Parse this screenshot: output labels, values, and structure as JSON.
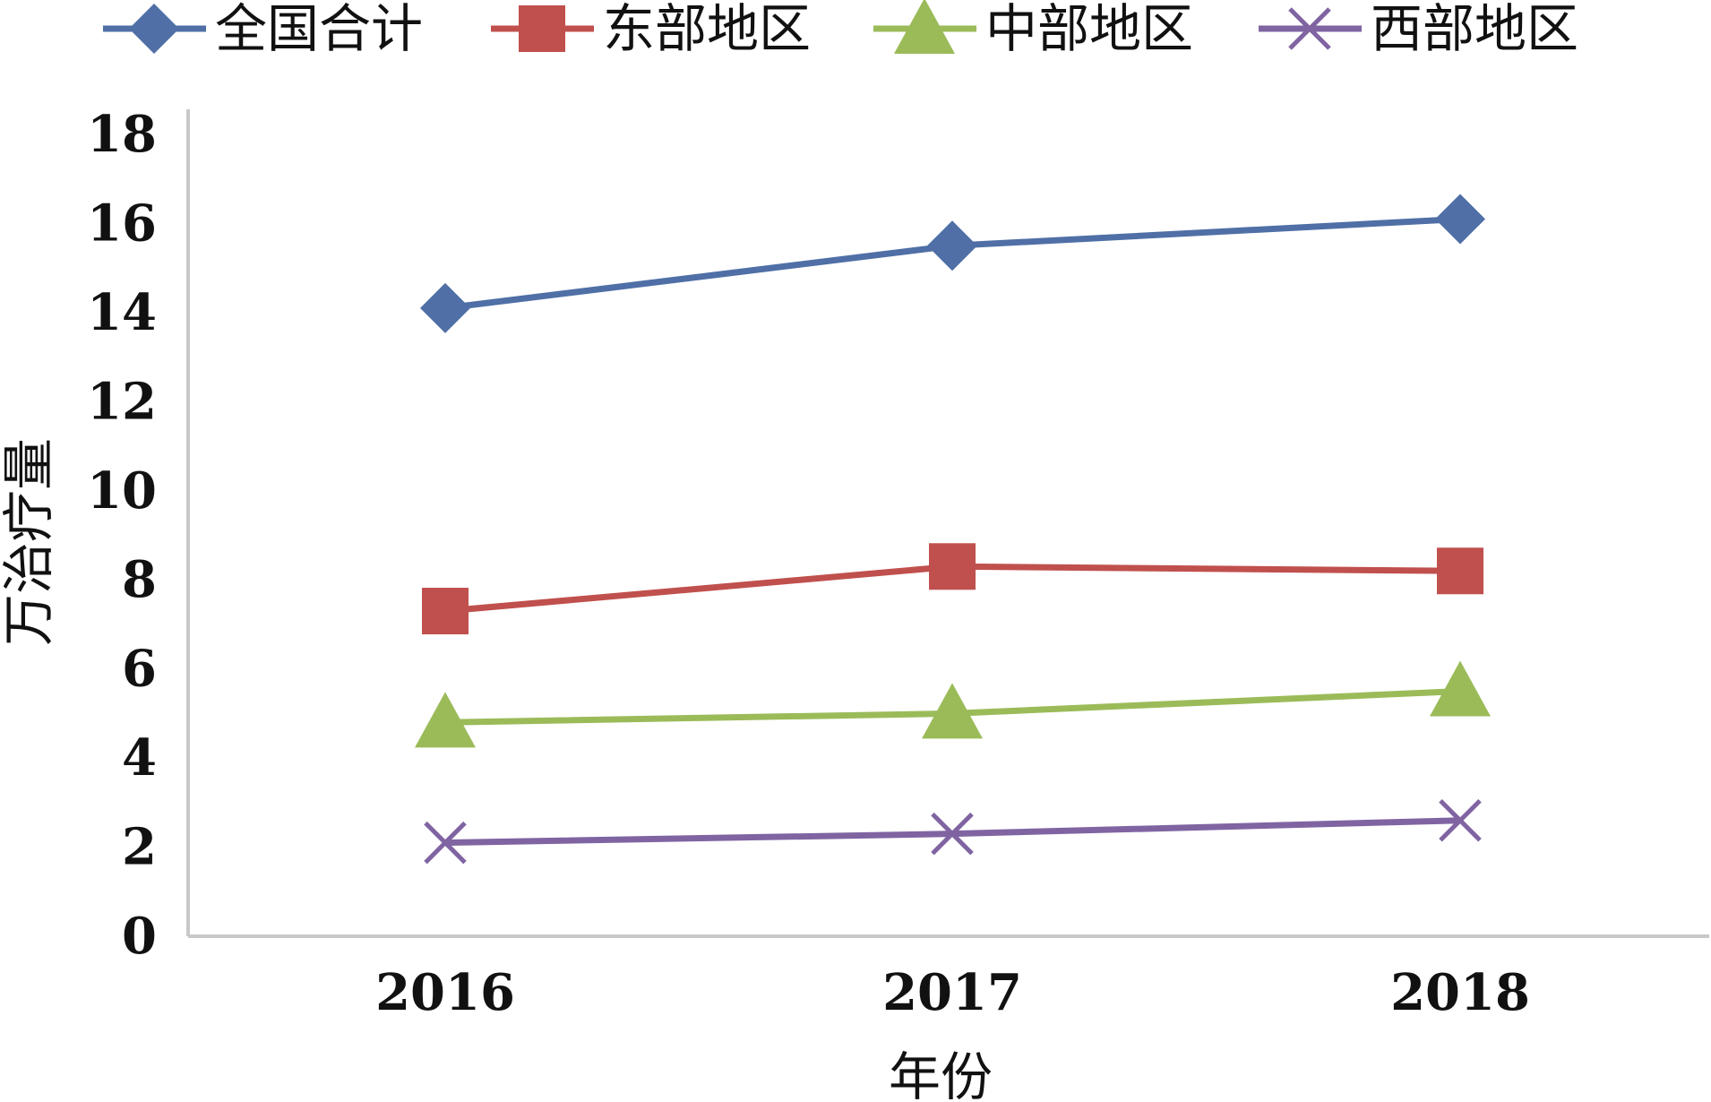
{
  "chart_data": {
    "type": "line",
    "title": "",
    "xlabel": "年份",
    "ylabel": "万治疗量",
    "categories": [
      "2016",
      "2017",
      "2018"
    ],
    "ylim": [
      0,
      18
    ],
    "yticks": [
      "0",
      "2",
      "4",
      "6",
      "8",
      "10",
      "12",
      "14",
      "16",
      "18"
    ],
    "grid": false,
    "legend_position": "top",
    "series": [
      {
        "name": "全国合计",
        "values": [
          14.1,
          15.5,
          16.1
        ],
        "color": "#4F6FA6",
        "marker": "diamond"
      },
      {
        "name": "东部地区",
        "values": [
          7.3,
          8.3,
          8.2
        ],
        "color": "#C0504D",
        "marker": "square"
      },
      {
        "name": "中部地区",
        "values": [
          4.8,
          5.0,
          5.5
        ],
        "color": "#9BBB59",
        "marker": "triangle"
      },
      {
        "name": "西部地区",
        "values": [
          2.1,
          2.3,
          2.6
        ],
        "color": "#8064A2",
        "marker": "x"
      }
    ]
  }
}
